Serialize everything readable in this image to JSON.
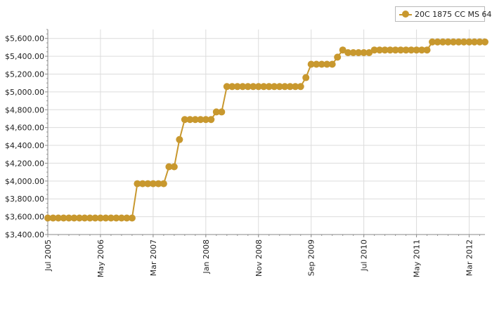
{
  "chart_data": {
    "type": "line",
    "title": "",
    "xlabel": "",
    "ylabel": "",
    "ylim": [
      3400,
      5700
    ],
    "xlim": [
      "2005-07",
      "2012-06"
    ],
    "grid": true,
    "legend_position": "top-right",
    "y_ticks": [
      3400,
      3600,
      3800,
      4000,
      4200,
      4400,
      4600,
      4800,
      5000,
      5200,
      5400,
      5600
    ],
    "y_tick_labels": [
      "$3,400.00",
      "$3,600.00",
      "$3,800.00",
      "$4,000.00",
      "$4,200.00",
      "$4,400.00",
      "$4,600.00",
      "$4,800.00",
      "$5,000.00",
      "$5,200.00",
      "$5,400.00",
      "$5,600.00"
    ],
    "x_ticks": [
      "2005-07",
      "2006-05",
      "2007-03",
      "2008-01",
      "2008-11",
      "2009-09",
      "2010-07",
      "2011-05",
      "2012-03"
    ],
    "x_tick_labels": [
      "Jul 2005",
      "May 2006",
      "Mar 2007",
      "Jan 2008",
      "Nov 2008",
      "Sep 2009",
      "Jul 2010",
      "May 2011",
      "Mar 2012"
    ],
    "series": [
      {
        "name": "20C 1875 CC MS 64",
        "color": "#c8982e",
        "x": [
          "2005-07",
          "2005-08",
          "2005-09",
          "2005-10",
          "2005-11",
          "2005-12",
          "2006-01",
          "2006-02",
          "2006-03",
          "2006-04",
          "2006-05",
          "2006-06",
          "2006-07",
          "2006-08",
          "2006-09",
          "2006-10",
          "2006-11",
          "2006-12",
          "2007-01",
          "2007-02",
          "2007-03",
          "2007-04",
          "2007-05",
          "2007-06",
          "2007-07",
          "2007-08",
          "2007-09",
          "2007-10",
          "2007-11",
          "2007-12",
          "2008-01",
          "2008-02",
          "2008-03",
          "2008-04",
          "2008-05",
          "2008-06",
          "2008-07",
          "2008-08",
          "2008-09",
          "2008-10",
          "2008-11",
          "2008-12",
          "2009-01",
          "2009-02",
          "2009-03",
          "2009-04",
          "2009-05",
          "2009-06",
          "2009-07",
          "2009-08",
          "2009-09",
          "2009-10",
          "2009-11",
          "2009-12",
          "2010-01",
          "2010-02",
          "2010-03",
          "2010-04",
          "2010-05",
          "2010-06",
          "2010-07",
          "2010-08",
          "2010-09",
          "2010-10",
          "2010-11",
          "2010-12",
          "2011-01",
          "2011-02",
          "2011-03",
          "2011-04",
          "2011-05",
          "2011-06",
          "2011-07",
          "2011-08",
          "2011-09",
          "2011-10",
          "2011-11",
          "2011-12",
          "2012-01",
          "2012-02",
          "2012-03",
          "2012-04",
          "2012-05",
          "2012-06"
        ],
        "values": [
          3585,
          3585,
          3585,
          3585,
          3585,
          3585,
          3585,
          3585,
          3585,
          3585,
          3585,
          3585,
          3585,
          3585,
          3585,
          3585,
          3585,
          3970,
          3970,
          3970,
          3970,
          3970,
          3970,
          4160,
          4160,
          4465,
          4690,
          4690,
          4690,
          4690,
          4690,
          4690,
          4775,
          4775,
          5060,
          5060,
          5060,
          5060,
          5060,
          5060,
          5060,
          5060,
          5060,
          5060,
          5060,
          5060,
          5060,
          5060,
          5060,
          5160,
          5310,
          5310,
          5310,
          5310,
          5310,
          5390,
          5470,
          5440,
          5440,
          5440,
          5440,
          5440,
          5470,
          5470,
          5470,
          5470,
          5470,
          5470,
          5470,
          5470,
          5470,
          5470,
          5470,
          5560,
          5560,
          5560,
          5560,
          5560,
          5560,
          5560,
          5560,
          5560,
          5560,
          5560
        ]
      }
    ]
  }
}
